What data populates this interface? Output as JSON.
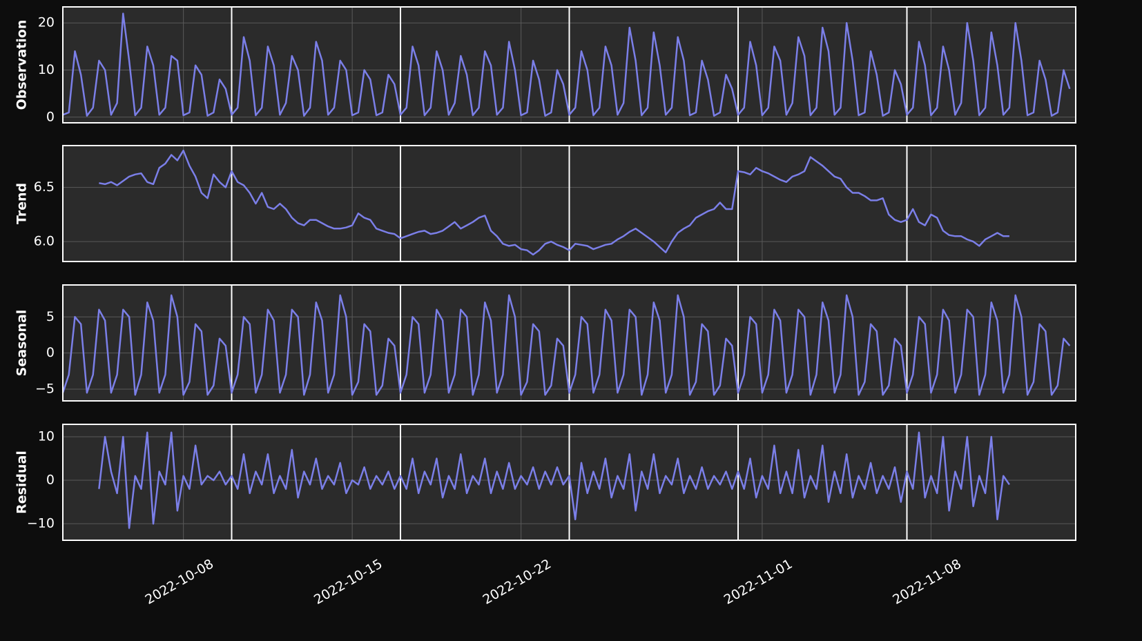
{
  "chart_data": {
    "type": "line",
    "xlim": [
      "2022-10-03",
      "2022-11-14"
    ],
    "xticks": [
      "2022-10-08",
      "2022-10-15",
      "2022-10-22",
      "2022-11-01",
      "2022-11-08"
    ],
    "vlines": [
      "2022-10-10",
      "2022-10-17",
      "2022-10-24",
      "2022-10-31",
      "2022-11-07"
    ],
    "grid": true,
    "x": [
      "2022-10-03 00:00",
      "2022-10-03 06:00",
      "2022-10-03 12:00",
      "2022-10-03 18:00",
      "2022-10-04 00:00",
      "2022-10-04 06:00",
      "2022-10-04 12:00",
      "2022-10-04 18:00",
      "2022-10-05 00:00",
      "2022-10-05 06:00",
      "2022-10-05 12:00",
      "2022-10-05 18:00",
      "2022-10-06 00:00",
      "2022-10-06 06:00",
      "2022-10-06 12:00",
      "2022-10-06 18:00",
      "2022-10-07 00:00",
      "2022-10-07 06:00",
      "2022-10-07 12:00",
      "2022-10-07 18:00",
      "2022-10-08 00:00",
      "2022-10-08 06:00",
      "2022-10-08 12:00",
      "2022-10-08 18:00",
      "2022-10-09 00:00",
      "2022-10-09 06:00",
      "2022-10-09 12:00",
      "2022-10-09 18:00",
      "2022-10-10 00:00",
      "2022-10-10 06:00",
      "2022-10-10 12:00",
      "2022-10-10 18:00",
      "2022-10-11 00:00",
      "2022-10-11 06:00",
      "2022-10-11 12:00",
      "2022-10-11 18:00",
      "2022-10-12 00:00",
      "2022-10-12 06:00",
      "2022-10-12 12:00",
      "2022-10-12 18:00",
      "2022-10-13 00:00",
      "2022-10-13 06:00",
      "2022-10-13 12:00",
      "2022-10-13 18:00",
      "2022-10-14 00:00",
      "2022-10-14 06:00",
      "2022-10-14 12:00",
      "2022-10-14 18:00",
      "2022-10-15 00:00",
      "2022-10-15 06:00",
      "2022-10-15 12:00",
      "2022-10-15 18:00",
      "2022-10-16 00:00",
      "2022-10-16 06:00",
      "2022-10-16 12:00",
      "2022-10-16 18:00",
      "2022-10-17 00:00",
      "2022-10-17 06:00",
      "2022-10-17 12:00",
      "2022-10-17 18:00",
      "2022-10-18 00:00",
      "2022-10-18 06:00",
      "2022-10-18 12:00",
      "2022-10-18 18:00",
      "2022-10-19 00:00",
      "2022-10-19 06:00",
      "2022-10-19 12:00",
      "2022-10-19 18:00",
      "2022-10-20 00:00",
      "2022-10-20 06:00",
      "2022-10-20 12:00",
      "2022-10-20 18:00",
      "2022-10-21 00:00",
      "2022-10-21 06:00",
      "2022-10-21 12:00",
      "2022-10-21 18:00",
      "2022-10-22 00:00",
      "2022-10-22 06:00",
      "2022-10-22 12:00",
      "2022-10-22 18:00",
      "2022-10-23 00:00",
      "2022-10-23 06:00",
      "2022-10-23 12:00",
      "2022-10-23 18:00",
      "2022-10-24 00:00",
      "2022-10-24 06:00",
      "2022-10-24 12:00",
      "2022-10-24 18:00",
      "2022-10-25 00:00",
      "2022-10-25 06:00",
      "2022-10-25 12:00",
      "2022-10-25 18:00",
      "2022-10-26 00:00",
      "2022-10-26 06:00",
      "2022-10-26 12:00",
      "2022-10-26 18:00",
      "2022-10-27 00:00",
      "2022-10-27 06:00",
      "2022-10-27 12:00",
      "2022-10-27 18:00",
      "2022-10-28 00:00",
      "2022-10-28 06:00",
      "2022-10-28 12:00",
      "2022-10-28 18:00",
      "2022-10-29 00:00",
      "2022-10-29 06:00",
      "2022-10-29 12:00",
      "2022-10-29 18:00",
      "2022-10-30 00:00",
      "2022-10-30 06:00",
      "2022-10-30 12:00",
      "2022-10-30 18:00",
      "2022-10-31 00:00",
      "2022-10-31 06:00",
      "2022-10-31 12:00",
      "2022-10-31 18:00",
      "2022-11-01 00:00",
      "2022-11-01 06:00",
      "2022-11-01 12:00",
      "2022-11-01 18:00",
      "2022-11-02 00:00",
      "2022-11-02 06:00",
      "2022-11-02 12:00",
      "2022-11-02 18:00",
      "2022-11-03 00:00",
      "2022-11-03 06:00",
      "2022-11-03 12:00",
      "2022-11-03 18:00",
      "2022-11-04 00:00",
      "2022-11-04 06:00",
      "2022-11-04 12:00",
      "2022-11-04 18:00",
      "2022-11-05 00:00",
      "2022-11-05 06:00",
      "2022-11-05 12:00",
      "2022-11-05 18:00",
      "2022-11-06 00:00",
      "2022-11-06 06:00",
      "2022-11-06 12:00",
      "2022-11-06 18:00",
      "2022-11-07 00:00",
      "2022-11-07 06:00",
      "2022-11-07 12:00",
      "2022-11-07 18:00",
      "2022-11-08 00:00",
      "2022-11-08 06:00",
      "2022-11-08 12:00",
      "2022-11-08 18:00",
      "2022-11-09 00:00",
      "2022-11-09 06:00",
      "2022-11-09 12:00",
      "2022-11-09 18:00",
      "2022-11-10 00:00",
      "2022-11-10 06:00",
      "2022-11-10 12:00",
      "2022-11-10 18:00",
      "2022-11-11 00:00",
      "2022-11-11 06:00",
      "2022-11-11 12:00",
      "2022-11-11 18:00",
      "2022-11-12 00:00",
      "2022-11-12 06:00",
      "2022-11-12 12:00",
      "2022-11-12 18:00",
      "2022-11-13 00:00",
      "2022-11-13 06:00",
      "2022-11-13 12:00",
      "2022-11-13 18:00"
    ],
    "series": [
      {
        "name": "Observation",
        "color": "#7b7fe8",
        "ylim": [
          -1.2,
          23.4
        ],
        "yticks": [
          0,
          10,
          20
        ],
        "values": [
          0.5,
          1,
          14,
          9,
          0.3,
          2,
          12,
          10,
          0.5,
          3,
          22,
          12,
          0.4,
          2,
          15,
          11,
          0.5,
          2,
          13,
          12,
          0.4,
          1,
          11,
          9,
          0.3,
          1,
          8,
          6,
          0.5,
          2,
          17,
          12,
          0.4,
          2,
          15,
          11,
          0.5,
          3,
          13,
          10,
          0.3,
          2,
          16,
          12,
          0.5,
          2,
          12,
          10,
          0.4,
          1,
          10,
          8,
          0.4,
          1,
          9,
          7,
          0.5,
          2,
          15,
          11,
          0.4,
          2,
          14,
          10,
          0.5,
          3,
          13,
          9,
          0.4,
          2,
          14,
          11,
          0.5,
          2,
          16,
          10,
          0.4,
          1,
          12,
          8,
          0.3,
          1,
          10,
          7,
          0.5,
          2,
          14,
          10,
          0.4,
          2,
          15,
          11,
          0.5,
          3,
          19,
          12,
          0.4,
          2,
          18,
          11,
          0.5,
          2,
          17,
          12,
          0.4,
          1,
          12,
          8,
          0.3,
          1,
          9,
          6,
          0.5,
          2,
          16,
          11,
          0.4,
          2,
          15,
          12,
          0.5,
          3,
          17,
          13,
          0.4,
          2,
          19,
          14,
          0.5,
          2,
          20,
          12,
          0.4,
          1,
          14,
          9,
          0.3,
          1,
          10,
          7,
          0.5,
          2,
          16,
          11,
          0.4,
          2,
          15,
          10,
          0.5,
          3,
          20,
          12,
          0.4,
          2,
          18,
          11,
          0.5,
          2,
          20,
          12,
          0.4,
          1,
          12,
          8,
          0.3,
          1,
          10,
          6
        ]
      },
      {
        "name": "Trend",
        "color": "#7b7fe8",
        "ylim": [
          5.816,
          6.886
        ],
        "yticks": [
          {
            "value": 6.0,
            "label": "6.0"
          },
          6.5
        ],
        "values": [
          null,
          null,
          null,
          null,
          null,
          null,
          6.54,
          6.53,
          6.55,
          6.52,
          6.56,
          6.6,
          6.62,
          6.63,
          6.55,
          6.53,
          6.68,
          6.72,
          6.8,
          6.75,
          6.84,
          6.7,
          6.6,
          6.45,
          6.4,
          6.62,
          6.55,
          6.5,
          6.65,
          6.55,
          6.52,
          6.45,
          6.35,
          6.45,
          6.32,
          6.3,
          6.35,
          6.3,
          6.22,
          6.17,
          6.15,
          6.2,
          6.2,
          6.17,
          6.14,
          6.12,
          6.12,
          6.13,
          6.15,
          6.26,
          6.22,
          6.2,
          6.12,
          6.1,
          6.08,
          6.07,
          6.03,
          6.05,
          6.07,
          6.09,
          6.1,
          6.07,
          6.08,
          6.1,
          6.14,
          6.18,
          6.12,
          6.15,
          6.18,
          6.22,
          6.24,
          6.1,
          6.05,
          5.98,
          5.96,
          5.97,
          5.93,
          5.92,
          5.88,
          5.92,
          5.98,
          6.0,
          5.97,
          5.95,
          5.92,
          5.98,
          5.97,
          5.96,
          5.93,
          5.95,
          5.97,
          5.98,
          6.02,
          6.05,
          6.09,
          6.12,
          6.08,
          6.04,
          6.0,
          5.95,
          5.9,
          6.0,
          6.08,
          6.12,
          6.15,
          6.22,
          6.25,
          6.28,
          6.3,
          6.36,
          6.3,
          6.3,
          6.65,
          6.64,
          6.62,
          6.68,
          6.65,
          6.63,
          6.6,
          6.57,
          6.55,
          6.6,
          6.62,
          6.65,
          6.78,
          6.74,
          6.7,
          6.65,
          6.6,
          6.58,
          6.5,
          6.45,
          6.45,
          6.42,
          6.38,
          6.38,
          6.4,
          6.25,
          6.2,
          6.18,
          6.2,
          6.3,
          6.18,
          6.15,
          6.25,
          6.22,
          6.1,
          6.06,
          6.05,
          6.05,
          6.02,
          6.0,
          5.96,
          6.02,
          6.05,
          6.08,
          6.05,
          6.05,
          null,
          null,
          null,
          null,
          null,
          null,
          null,
          null,
          null,
          null
        ]
      },
      {
        "name": "Seasonal",
        "color": "#7b7fe8",
        "ylim": [
          -6.63,
          9.42
        ],
        "yticks": [
          {
            "value": -5,
            "label": "−5"
          },
          0,
          5
        ],
        "values": [
          -5.5,
          -3,
          5,
          4,
          -5.5,
          -3,
          6,
          4.5,
          -5.5,
          -3,
          6,
          5,
          -5.8,
          -3,
          7,
          4.5,
          -5.5,
          -3,
          8,
          5,
          -5.8,
          -4,
          4,
          3,
          -5.8,
          -4.5,
          2,
          1,
          -5.5,
          -3,
          5,
          4,
          -5.5,
          -3,
          6,
          4.5,
          -5.5,
          -3,
          6,
          5,
          -5.8,
          -3,
          7,
          4.5,
          -5.5,
          -3,
          8,
          5,
          -5.8,
          -4,
          4,
          3,
          -5.8,
          -4.5,
          2,
          1,
          -5.5,
          -3,
          5,
          4,
          -5.5,
          -3,
          6,
          4.5,
          -5.5,
          -3,
          6,
          5,
          -5.8,
          -3,
          7,
          4.5,
          -5.5,
          -3,
          8,
          5,
          -5.8,
          -4,
          4,
          3,
          -5.8,
          -4.5,
          2,
          1,
          -5.5,
          -3,
          5,
          4,
          -5.5,
          -3,
          6,
          4.5,
          -5.5,
          -3,
          6,
          5,
          -5.8,
          -3,
          7,
          4.5,
          -5.5,
          -3,
          8,
          5,
          -5.8,
          -4,
          4,
          3,
          -5.8,
          -4.5,
          2,
          1,
          -5.5,
          -3,
          5,
          4,
          -5.5,
          -3,
          6,
          4.5,
          -5.5,
          -3,
          6,
          5,
          -5.8,
          -3,
          7,
          4.5,
          -5.5,
          -3,
          8,
          5,
          -5.8,
          -4,
          4,
          3,
          -5.8,
          -4.5,
          2,
          1,
          -5.5,
          -3,
          5,
          4,
          -5.5,
          -3,
          6,
          4.5,
          -5.5,
          -3,
          6,
          5,
          -5.8,
          -3,
          7,
          4.5,
          -5.5,
          -3,
          8,
          5,
          -5.8,
          -4,
          4,
          3,
          -5.8,
          -4.5,
          2,
          1
        ]
      },
      {
        "name": "Residual",
        "color": "#7b7fe8",
        "ylim": [
          -13.8,
          12.86
        ],
        "yticks": [
          {
            "value": -10,
            "label": "−10"
          },
          0,
          10
        ],
        "values": [
          null,
          null,
          null,
          null,
          null,
          null,
          -2,
          10,
          2,
          -3,
          10,
          -11,
          1,
          -2,
          11,
          -10,
          2,
          -1,
          11,
          -7,
          1,
          -2,
          8,
          -1,
          1,
          0,
          2,
          -1,
          1,
          -2,
          6,
          -3,
          2,
          -1,
          6,
          -3,
          1,
          -2,
          7,
          -4,
          2,
          -1,
          5,
          -2,
          1,
          -1,
          4,
          -3,
          0,
          -1,
          3,
          -2,
          1,
          -1,
          2,
          -2,
          1,
          -2,
          5,
          -3,
          2,
          -1,
          5,
          -4,
          1,
          -2,
          6,
          -3,
          1,
          -1,
          5,
          -3,
          2,
          -2,
          4,
          -2,
          1,
          -1,
          3,
          -2,
          2,
          -1,
          3,
          -1,
          1,
          -9,
          4,
          -3,
          2,
          -2,
          5,
          -4,
          1,
          -2,
          6,
          -7,
          2,
          -2,
          6,
          -3,
          1,
          -1,
          5,
          -3,
          1,
          -2,
          3,
          -2,
          1,
          -1,
          2,
          -2,
          2,
          -2,
          5,
          -4,
          1,
          -2,
          8,
          -3,
          2,
          -3,
          7,
          -4,
          1,
          -2,
          8,
          -5,
          2,
          -3,
          6,
          -4,
          1,
          -2,
          4,
          -3,
          1,
          -2,
          3,
          -5,
          2,
          -2,
          11,
          -4,
          1,
          -3,
          10,
          -7,
          2,
          -2,
          10,
          -6,
          1,
          -3,
          10,
          -9,
          1,
          -1,
          null,
          null,
          null,
          null,
          null,
          null,
          null,
          null,
          null,
          null
        ]
      }
    ]
  }
}
